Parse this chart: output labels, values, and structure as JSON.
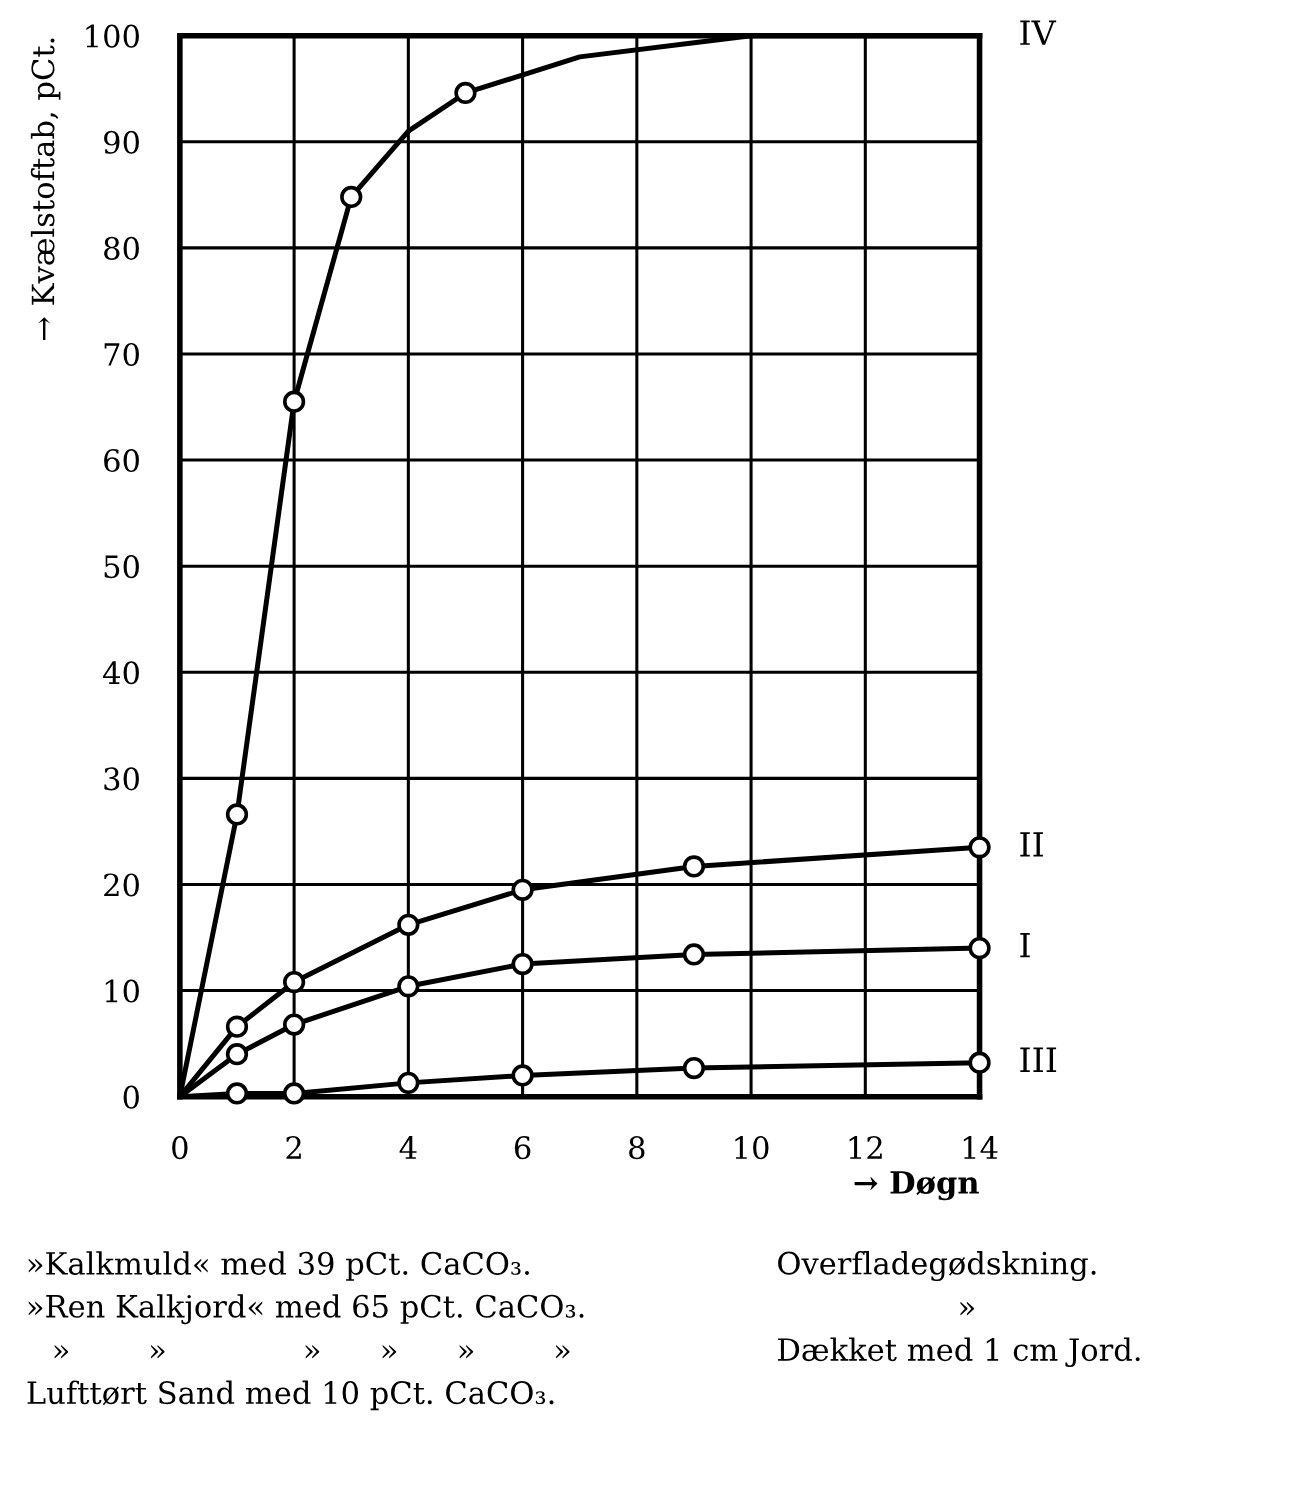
{
  "chart_data": {
    "type": "line",
    "xlabel": "→ Døgn",
    "ylabel": "→ Kvælstoftab, pCt.",
    "xlim": [
      0,
      14
    ],
    "ylim": [
      0,
      100
    ],
    "xticks": [
      0,
      2,
      4,
      6,
      8,
      10,
      12,
      14
    ],
    "yticks": [
      0,
      10,
      20,
      30,
      40,
      50,
      60,
      70,
      80,
      90,
      100
    ],
    "grid": true,
    "marker": "none",
    "line_style": "solid",
    "series": [
      {
        "name": "IV",
        "color": "#000000",
        "x": [
          0,
          1,
          2,
          3,
          4,
          5,
          7,
          10,
          14
        ],
        "values": [
          0,
          26.6,
          65.5,
          84.8,
          91,
          94.6,
          98,
          100,
          100
        ]
      },
      {
        "name": "II",
        "color": "#000000",
        "x": [
          0,
          1,
          2,
          4,
          6,
          9,
          14
        ],
        "values": [
          0,
          6.6,
          10.8,
          16.2,
          19.5,
          21.7,
          23.5
        ]
      },
      {
        "name": "I",
        "color": "#000000",
        "x": [
          0,
          1,
          2,
          4,
          6,
          9,
          14
        ],
        "values": [
          0,
          4,
          6.8,
          10.4,
          12.5,
          13.4,
          14
        ]
      },
      {
        "name": "III",
        "color": "#000000",
        "x": [
          0,
          1,
          2,
          4,
          6,
          9,
          14
        ],
        "values": [
          0,
          0.3,
          0.3,
          1.3,
          2,
          2.7,
          3.2
        ]
      },
      {
        "type": "scatter",
        "marker": "circle",
        "color": "#000000",
        "x": [
          1,
          2,
          3,
          5
        ],
        "values": [
          26.6,
          65.5,
          84.8,
          94.6
        ]
      },
      {
        "type": "scatter",
        "marker": "circle",
        "color": "#000000",
        "x": [
          1,
          2,
          4,
          6,
          9,
          14
        ],
        "values": [
          6.6,
          10.8,
          16.2,
          19.5,
          21.7,
          23.5
        ]
      },
      {
        "type": "scatter",
        "marker": "circle",
        "color": "#000000",
        "x": [
          1,
          2,
          4,
          6,
          9,
          14
        ],
        "values": [
          4,
          6.8,
          10.4,
          12.5,
          13.4,
          14
        ]
      },
      {
        "type": "scatter",
        "marker": "circle",
        "color": "#000000",
        "x": [
          1,
          2,
          4,
          6,
          9,
          14
        ],
        "values": [
          0.3,
          0.3,
          1.3,
          2,
          2.7,
          3.2
        ]
      }
    ],
    "annotations": [
      "»Kalkmuld« med 39 pCt. CaCO₃.",
      "Overfladegødskning.",
      "»Ren Kalkjord« med 65 pCt. CaCO₃.",
      "»",
      "»        »              »      »      »        »",
      "Dækket med 1 cm Jord.",
      "Lufttørt Sand med 10 pCt. CaCO₃."
    ]
  }
}
